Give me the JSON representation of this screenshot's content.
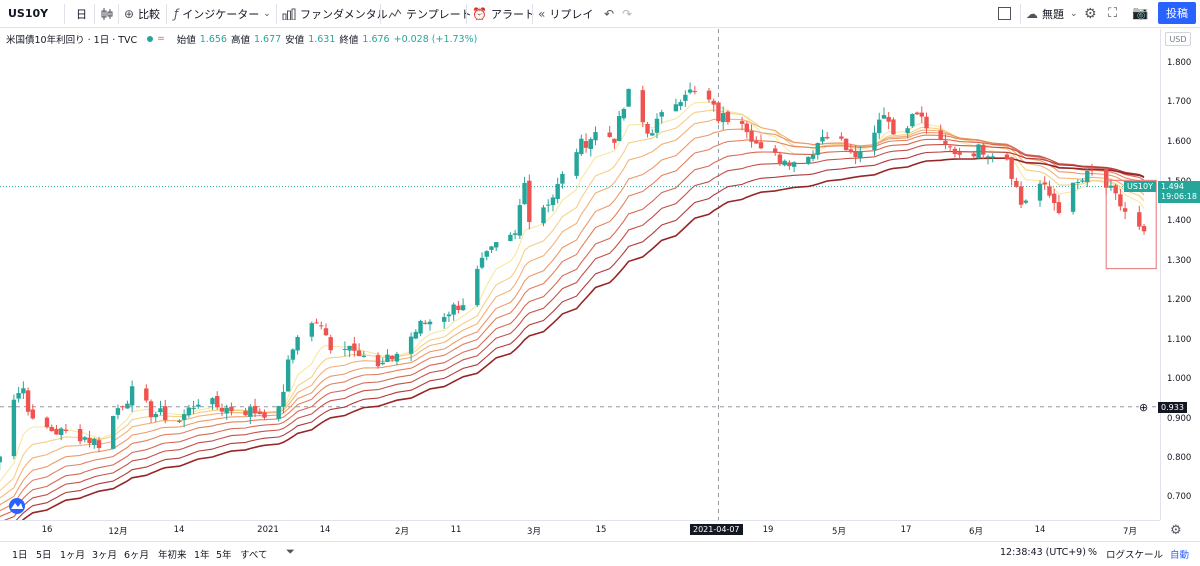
{
  "toolbar": {
    "symbol": "US10Y",
    "interval": "日",
    "compare_label": "比較",
    "indicators_label": "インジケーター",
    "fundamentals_label": "ファンダメンタル",
    "templates_label": "テンプレート",
    "alert_label": "アラート",
    "replay_label": "リプレイ",
    "layout_name": "無題",
    "post_label": "投稿"
  },
  "legend": {
    "title": "米国債10年利回り · 1日 · TVC",
    "open_label": "始値",
    "open_value": "1.656",
    "high_label": "高値",
    "high_value": "1.677",
    "low_label": "安値",
    "low_value": "1.631",
    "close_label": "終値",
    "close_value": "1.676",
    "change": "+0.028 (+1.73%)"
  },
  "price_axis": {
    "currency": "USD",
    "ticks": [
      "1.800",
      "1.700",
      "1.600",
      "1.500",
      "1.400",
      "1.300",
      "1.200",
      "1.100",
      "1.000",
      "0.900",
      "0.800",
      "0.700"
    ],
    "symbol_tag": "US10Y",
    "last_price": "1.494",
    "countdown": "19:06:18",
    "crosshair_price": "0.933"
  },
  "time_axis": {
    "ticks": [
      "16",
      "12月",
      "14",
      "2021",
      "14",
      "2月",
      "11",
      "3月",
      "15",
      "19",
      "5月",
      "17",
      "6月",
      "14",
      "7月"
    ],
    "crosshair_date": "2021-04-07"
  },
  "bottom_bar": {
    "ranges": [
      "1日",
      "5日",
      "1ヶ月",
      "3ヶ月",
      "6ヶ月",
      "年初来",
      "1年",
      "5年",
      "すべて"
    ],
    "clock": "12:38:43 (UTC+9)",
    "percent_label": "%",
    "log_label": "ログスケール",
    "auto_label": "自動"
  },
  "colors": {
    "up": "#26a69a",
    "down": "#ef5350",
    "ribbon": [
      "#f9e79f",
      "#f6cf86",
      "#f2b277",
      "#ec9a6a",
      "#e28160",
      "#d66a55",
      "#c55248",
      "#b23b3a",
      "#972626"
    ],
    "accent": "#2962ff"
  },
  "chart_data": {
    "type": "candlestick",
    "symbol": "US10Y",
    "interval": "1D",
    "source": "TVC",
    "ylim": [
      0.66,
      1.86
    ],
    "x_range": [
      "2020-11-04",
      "2021-07-06"
    ],
    "x_ticks": [
      "2020-11-16",
      "2020-12-01",
      "2020-12-14",
      "2021-01-01",
      "2021-01-14",
      "2021-02-01",
      "2021-02-11",
      "2021-03-01",
      "2021-03-15",
      "2021-04-19",
      "2021-05-01",
      "2021-05-17",
      "2021-06-01",
      "2021-06-14",
      "2021-07-01"
    ],
    "ohlc_last": {
      "open": 1.656,
      "high": 1.677,
      "low": 1.631,
      "close": 1.676,
      "change": 0.028,
      "change_pct": 1.73
    },
    "last_price": 1.494,
    "crosshair": {
      "date": "2021-04-07",
      "price": 0.933
    },
    "anchors": [
      [
        "2020-11-04",
        0.76
      ],
      [
        "2020-11-06",
        0.82
      ],
      [
        "2020-11-09",
        0.96
      ],
      [
        "2020-11-11",
        0.98
      ],
      [
        "2020-11-13",
        0.89
      ],
      [
        "2020-11-18",
        0.87
      ],
      [
        "2020-11-23",
        0.86
      ],
      [
        "2020-11-27",
        0.84
      ],
      [
        "2020-12-01",
        0.93
      ],
      [
        "2020-12-04",
        0.97
      ],
      [
        "2020-12-08",
        0.92
      ],
      [
        "2020-12-14",
        0.9
      ],
      [
        "2020-12-18",
        0.95
      ],
      [
        "2020-12-23",
        0.93
      ],
      [
        "2020-12-31",
        0.92
      ],
      [
        "2021-01-04",
        0.92
      ],
      [
        "2021-01-06",
        1.04
      ],
      [
        "2021-01-08",
        1.12
      ],
      [
        "2021-01-12",
        1.15
      ],
      [
        "2021-01-15",
        1.09
      ],
      [
        "2021-01-20",
        1.09
      ],
      [
        "2021-01-25",
        1.03
      ],
      [
        "2021-01-29",
        1.07
      ],
      [
        "2021-02-03",
        1.14
      ],
      [
        "2021-02-08",
        1.17
      ],
      [
        "2021-02-12",
        1.2
      ],
      [
        "2021-02-16",
        1.3
      ],
      [
        "2021-02-19",
        1.34
      ],
      [
        "2021-02-23",
        1.37
      ],
      [
        "2021-02-25",
        1.52
      ],
      [
        "2021-02-26",
        1.41
      ],
      [
        "2021-03-03",
        1.47
      ],
      [
        "2021-03-08",
        1.59
      ],
      [
        "2021-03-12",
        1.63
      ],
      [
        "2021-03-16",
        1.62
      ],
      [
        "2021-03-19",
        1.73
      ],
      [
        "2021-03-23",
        1.63
      ],
      [
        "2021-03-26",
        1.67
      ],
      [
        "2021-03-31",
        1.74
      ],
      [
        "2021-04-05",
        1.71
      ],
      [
        "2021-04-07",
        1.67
      ],
      [
        "2021-04-12",
        1.67
      ],
      [
        "2021-04-16",
        1.58
      ],
      [
        "2021-04-21",
        1.56
      ],
      [
        "2021-04-26",
        1.57
      ],
      [
        "2021-04-29",
        1.63
      ],
      [
        "2021-05-04",
        1.6
      ],
      [
        "2021-05-07",
        1.58
      ],
      [
        "2021-05-12",
        1.69
      ],
      [
        "2021-05-14",
        1.63
      ],
      [
        "2021-05-19",
        1.68
      ],
      [
        "2021-05-24",
        1.6
      ],
      [
        "2021-05-28",
        1.58
      ],
      [
        "2021-06-02",
        1.59
      ],
      [
        "2021-06-07",
        1.57
      ],
      [
        "2021-06-10",
        1.45
      ],
      [
        "2021-06-14",
        1.5
      ],
      [
        "2021-06-18",
        1.44
      ],
      [
        "2021-06-21",
        1.49
      ],
      [
        "2021-06-25",
        1.53
      ],
      [
        "2021-06-29",
        1.48
      ],
      [
        "2021-07-02",
        1.43
      ],
      [
        "2021-07-06",
        1.37
      ]
    ],
    "ribbon_type": "moving average ribbon (9 lines)"
  }
}
